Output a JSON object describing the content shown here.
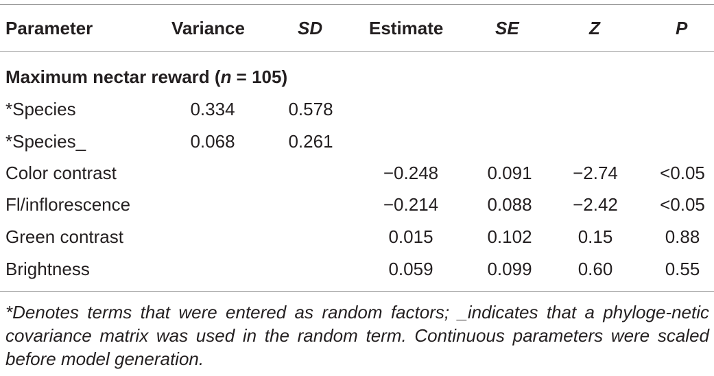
{
  "table": {
    "headers": {
      "parameter": "Parameter",
      "variance": "Variance",
      "sd": "SD",
      "estimate": "Estimate",
      "se": "SE",
      "z": "Z",
      "p": "P"
    },
    "section": {
      "prefix": "Maximum nectar reward (",
      "n_symbol": "n",
      "suffix": " = 105)"
    },
    "rows": [
      {
        "parameter": "*Species",
        "variance": "0.334",
        "sd": "0.578",
        "estimate": "",
        "se": "",
        "z": "",
        "p": ""
      },
      {
        "parameter": "*Species_",
        "variance": "0.068",
        "sd": "0.261",
        "estimate": "",
        "se": "",
        "z": "",
        "p": ""
      },
      {
        "parameter": "Color contrast",
        "variance": "",
        "sd": "",
        "estimate": "−0.248",
        "se": "0.091",
        "z": "−2.74",
        "p": "<0.05"
      },
      {
        "parameter": "Fl/inflorescence",
        "variance": "",
        "sd": "",
        "estimate": "−0.214",
        "se": "0.088",
        "z": "−2.42",
        "p": "<0.05"
      },
      {
        "parameter": "Green contrast",
        "variance": "",
        "sd": "",
        "estimate": "0.015",
        "se": "0.102",
        "z": "0.15",
        "p": "0.88"
      },
      {
        "parameter": "Brightness",
        "variance": "",
        "sd": "",
        "estimate": "0.059",
        "se": "0.099",
        "z": "0.60",
        "p": "0.55"
      }
    ],
    "footnote": "*Denotes terms that were entered as random factors; _indicates that a phyloge-netic covariance matrix was used in the random term. Continuous parameters were scaled before model generation."
  }
}
